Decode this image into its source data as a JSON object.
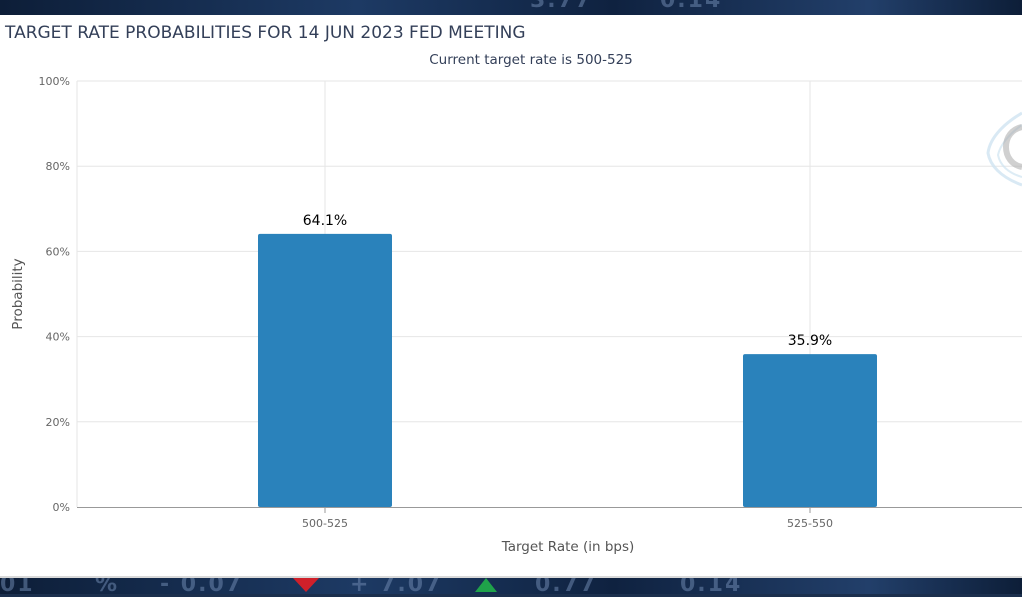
{
  "chart_data": {
    "type": "bar",
    "title": "TARGET RATE PROBABILITIES FOR 14 JUN 2023 FED MEETING",
    "subtitle": "Current target rate is 500-525",
    "xlabel": "Target Rate (in bps)",
    "ylabel": "Probability",
    "categories": [
      "500-525",
      "525-550"
    ],
    "values": [
      64.1,
      35.9
    ],
    "data_labels": [
      "64.1%",
      "35.9%"
    ],
    "y_ticks": [
      "0%",
      "20%",
      "40%",
      "60%",
      "80%",
      "100%"
    ],
    "ylim": [
      0,
      100
    ],
    "grid": true,
    "bar_color": "#2a82bb"
  }
}
